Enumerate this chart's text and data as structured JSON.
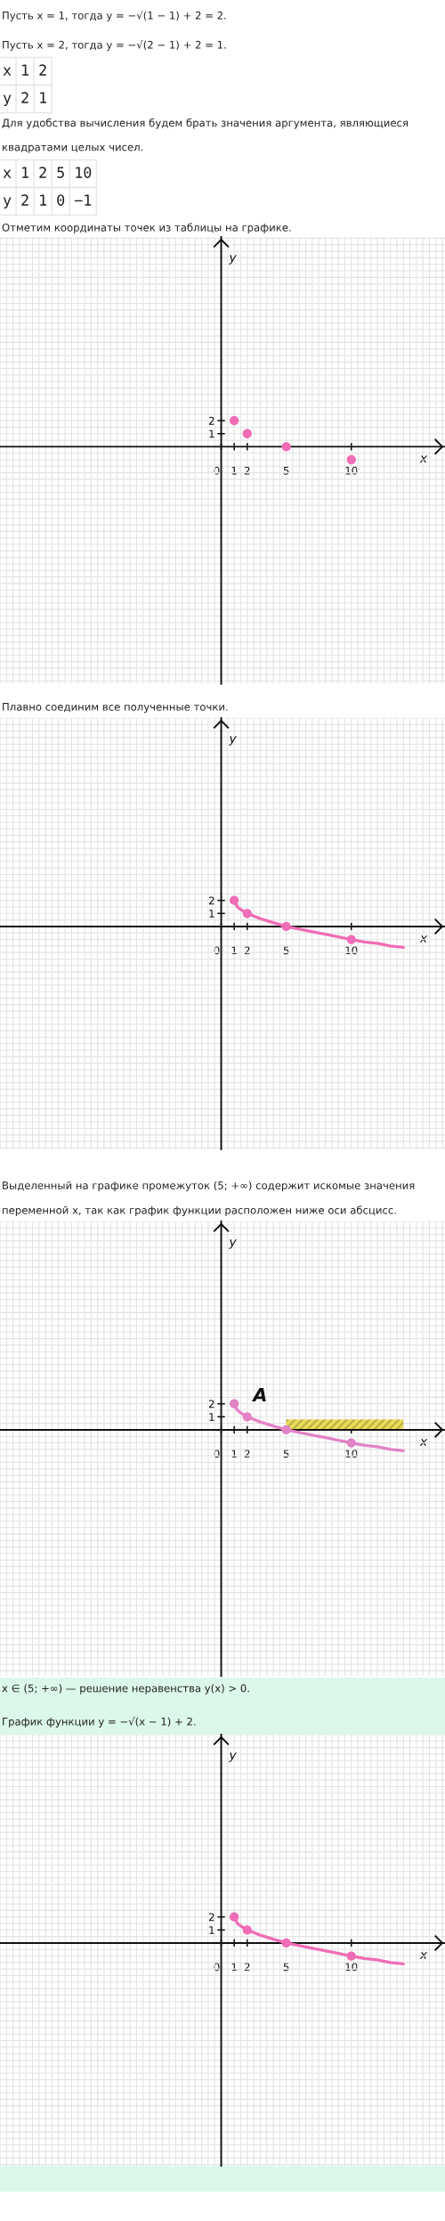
{
  "chart_data": [
    {
      "type": "scatter",
      "title": "Отметим координаты точек из таблицы на графике.",
      "xlabel": "x",
      "ylabel": "y",
      "annotations": [
        "Пусть x = 1, тогда y = −√(1 − 1) + 2 = 2.",
        "Пусть x = 2, тогда y = −√(2 − 1) + 2 = 1.",
        "x 1 2",
        "y 2 1",
        "Для удобства вычисления будем брать значения аргумента, являющиеся квадратами целых чисел.",
        "x 1 2 5 10",
        "y 2 1 0 −1"
      ],
      "xlim": [
        -17,
        17.2
      ],
      "ylim": [
        -18.2,
        16.1
      ],
      "xticks": [
        0,
        1,
        2,
        5,
        10
      ],
      "yticks": [
        1,
        2
      ],
      "grid": true,
      "marker": "circle",
      "series": [
        {
          "color": "#f06db5",
          "x": [
            1,
            2,
            5,
            10
          ],
          "values": [
            2,
            1,
            0,
            -1
          ]
        }
      ]
    },
    {
      "type": "line",
      "title": "Плавно соединим все полученные точки.",
      "xlabel": "x",
      "ylabel": "y",
      "xlim": [
        -17,
        17.2
      ],
      "ylim": [
        -17.1,
        16
      ],
      "xticks": [
        0,
        1,
        2,
        5,
        10
      ],
      "yticks": [
        1,
        2
      ],
      "grid": true,
      "marker": "circle",
      "series": [
        {
          "color": "#ef6db6",
          "marker": "none",
          "x": [
            1,
            1.25,
            1.5,
            2,
            3,
            4,
            5,
            6,
            7,
            8,
            9,
            10,
            11,
            12,
            13,
            14
          ],
          "values": [
            2,
            1.5,
            1.3,
            1,
            0.6,
            0.3,
            0,
            -0.2,
            -0.4,
            -0.6,
            -0.8,
            -1,
            -1.2,
            -1.3,
            -1.5,
            -1.6
          ]
        },
        {
          "type": "scatter",
          "color": "#ef6db6",
          "x": [
            1,
            2,
            5,
            10
          ],
          "values": [
            2,
            1,
            0,
            -1
          ]
        }
      ]
    },
    {
      "type": "line",
      "title": "Выделенный на графике промежуток (5; +∞) содержит искомые значения переменной x, так как график функции расположен ниже оси абсцисс.",
      "xlabel": "x",
      "ylabel": "y",
      "annotations": [
        {
          "text": "A",
          "x": 1,
          "y": 2
        },
        "x ∈ (5; +∞) — решение неравенства y(x) > 0."
      ],
      "xlim": [
        -17,
        17.2
      ],
      "ylim": [
        -18.9,
        16
      ],
      "xticks": [
        0,
        1,
        2,
        5,
        10
      ],
      "yticks": [
        1,
        2
      ],
      "grid": true,
      "marker": "circle",
      "series": [
        {
          "color": "#e283c6",
          "marker": "none",
          "x": [
            1,
            1.25,
            1.5,
            2,
            3,
            4,
            5,
            6,
            7,
            8,
            9,
            10,
            11,
            12,
            13,
            14
          ],
          "values": [
            2,
            1.5,
            1.3,
            1,
            0.6,
            0.3,
            0,
            -0.2,
            -0.4,
            -0.6,
            -0.8,
            -1,
            -1.2,
            -1.3,
            -1.5,
            -1.6
          ]
        },
        {
          "type": "scatter",
          "color": "#e283c6",
          "x": [
            1,
            2,
            5,
            10
          ],
          "values": [
            2,
            1,
            0,
            -1
          ]
        },
        {
          "type": "area",
          "color": "#ebdc58",
          "marker": "none",
          "x": [
            5,
            14
          ],
          "values": [
            0.8,
            0.8
          ]
        }
      ]
    },
    {
      "type": "line",
      "title": "График функции y = −√(x − 1) + 2.",
      "xlabel": "x",
      "ylabel": "y",
      "xlim": [
        -17,
        17.2
      ],
      "ylim": [
        -17.1,
        16
      ],
      "xticks": [
        0,
        1,
        2,
        5,
        10
      ],
      "yticks": [
        1,
        2
      ],
      "grid": true,
      "marker": "circle",
      "series": [
        {
          "color": "#ef6db6",
          "marker": "none",
          "x": [
            1,
            1.25,
            1.5,
            2,
            3,
            4,
            5,
            6,
            7,
            8,
            9,
            10,
            11,
            12,
            13,
            14
          ],
          "values": [
            2,
            1.5,
            1.3,
            1,
            0.6,
            0.3,
            0,
            -0.2,
            -0.4,
            -0.6,
            -0.8,
            -1,
            -1.2,
            -1.3,
            -1.5,
            -1.6
          ]
        },
        {
          "type": "scatter",
          "color": "#ef6db6",
          "x": [
            1,
            2,
            5,
            10
          ],
          "values": [
            2,
            1,
            0,
            -1
          ]
        }
      ]
    }
  ]
}
